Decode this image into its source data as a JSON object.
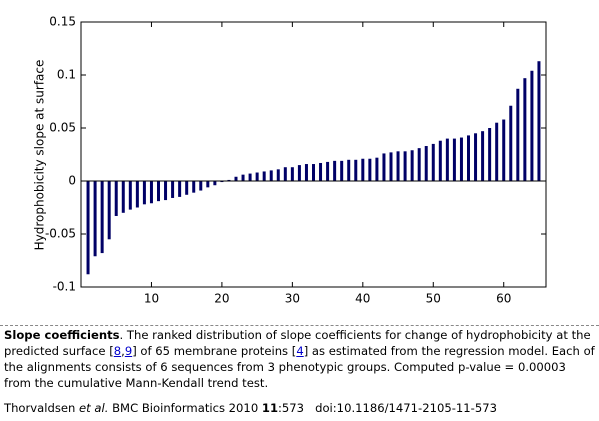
{
  "chart_data": {
    "type": "bar",
    "ylabel": "Hydrophobicity slope at surface",
    "color": "#000066",
    "x": [
      1,
      2,
      3,
      4,
      5,
      6,
      7,
      8,
      9,
      10,
      11,
      12,
      13,
      14,
      15,
      16,
      17,
      18,
      19,
      20,
      21,
      22,
      23,
      24,
      25,
      26,
      27,
      28,
      29,
      30,
      31,
      32,
      33,
      34,
      35,
      36,
      37,
      38,
      39,
      40,
      41,
      42,
      43,
      44,
      45,
      46,
      47,
      48,
      49,
      50,
      51,
      52,
      53,
      54,
      55,
      56,
      57,
      58,
      59,
      60,
      61,
      62,
      63,
      64,
      65
    ],
    "values": [
      -0.088,
      -0.071,
      -0.068,
      -0.055,
      -0.033,
      -0.03,
      -0.027,
      -0.025,
      -0.022,
      -0.021,
      -0.019,
      -0.018,
      -0.016,
      -0.015,
      -0.013,
      -0.011,
      -0.009,
      -0.006,
      -0.004,
      -0.001,
      0.001,
      0.004,
      0.006,
      0.007,
      0.008,
      0.009,
      0.01,
      0.011,
      0.013,
      0.013,
      0.015,
      0.016,
      0.016,
      0.017,
      0.018,
      0.019,
      0.019,
      0.02,
      0.02,
      0.021,
      0.021,
      0.022,
      0.026,
      0.027,
      0.028,
      0.028,
      0.029,
      0.031,
      0.033,
      0.035,
      0.038,
      0.04,
      0.04,
      0.041,
      0.043,
      0.045,
      0.047,
      0.05,
      0.055,
      0.058,
      0.071,
      0.087,
      0.097,
      0.104,
      0.113
    ],
    "xlim": [
      0,
      66
    ],
    "xticks": [
      10,
      20,
      30,
      40,
      50,
      60
    ],
    "ylim": [
      -0.1,
      0.15
    ],
    "yticks": [
      -0.1,
      -0.05,
      0,
      0.05,
      0.1,
      0.15
    ]
  },
  "caption": [
    {
      "text": "Slope coefficients",
      "bold": true
    },
    {
      "text": ". The ranked distribution of slope coefficients for change of hydrophobicity at the predicted surface ["
    },
    {
      "text": "8",
      "link": true
    },
    {
      "text": ","
    },
    {
      "text": "9",
      "link": true
    },
    {
      "text": "] of 65 membrane proteins ["
    },
    {
      "text": "4",
      "link": true
    },
    {
      "text": "] as estimated from the regression model. Each of the alignments consists of 6 sequences from 3 phenotypic groups. Computed p-value = 0.00003 from the cumulative Mann-Kendall trend test."
    }
  ],
  "citation": [
    {
      "text": "Thorvaldsen "
    },
    {
      "text": "et al.",
      "italic": true
    },
    {
      "text": " BMC Bioinformatics 2010 "
    },
    {
      "text": "11",
      "bold": true
    },
    {
      "text": ":573   doi:10.1186/1471-2105-11-573"
    }
  ]
}
